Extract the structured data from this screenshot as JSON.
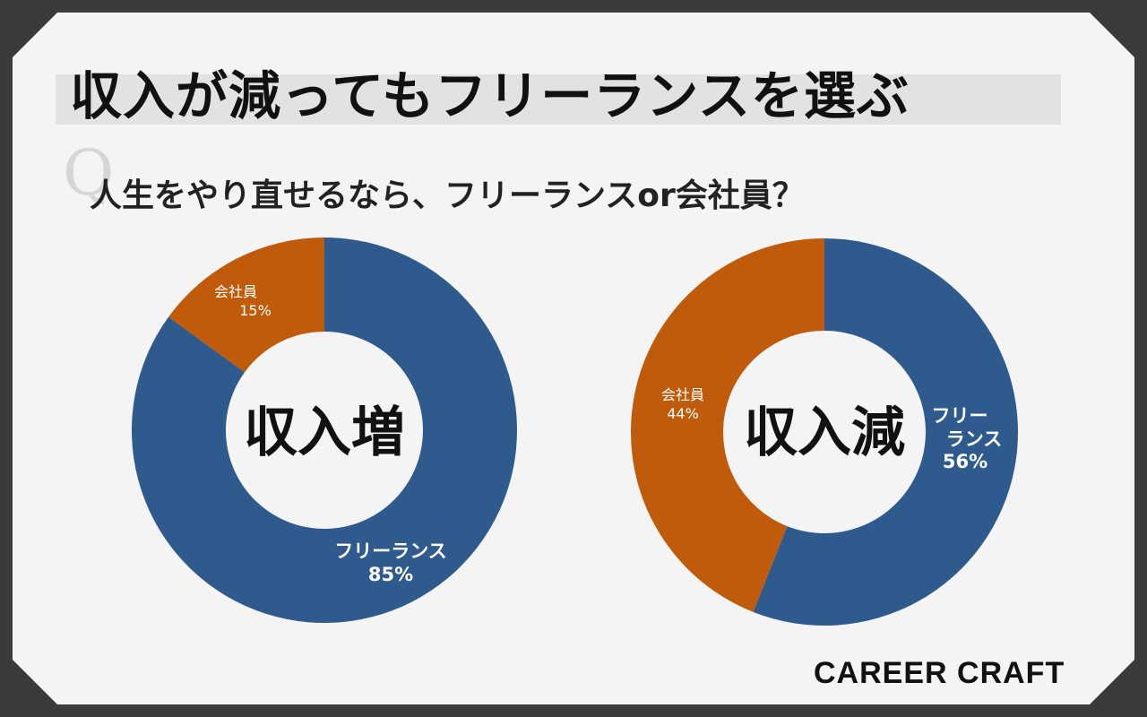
{
  "title": "収入が減ってもフリーランスを選ぶ",
  "question": {
    "q_mark": "Q",
    "text": "人生をやり直せるなら、フリーランスor会社員？"
  },
  "brand": "CAREER CRAFT",
  "colors": {
    "freelance": "#2e5a8e",
    "employee": "#bf5b0a",
    "background": "#f4f4f4",
    "frame": "#3b3b3b"
  },
  "chart_data": [
    {
      "type": "pie",
      "center_label": "収入増",
      "slices": [
        {
          "label": "フリーランス",
          "value": 85,
          "value_label": "85%",
          "color": "#2e5a8e"
        },
        {
          "label": "会社員",
          "value": 15,
          "value_label": "15%",
          "color": "#bf5b0a"
        }
      ]
    },
    {
      "type": "pie",
      "center_label": "収入減",
      "slices": [
        {
          "label": "フリーランス",
          "label_lines": [
            "フリー",
            "ランス"
          ],
          "value": 56,
          "value_label": "56%",
          "color": "#2e5a8e"
        },
        {
          "label": "会社員",
          "value": 44,
          "value_label": "44%",
          "color": "#bf5b0a"
        }
      ]
    }
  ]
}
